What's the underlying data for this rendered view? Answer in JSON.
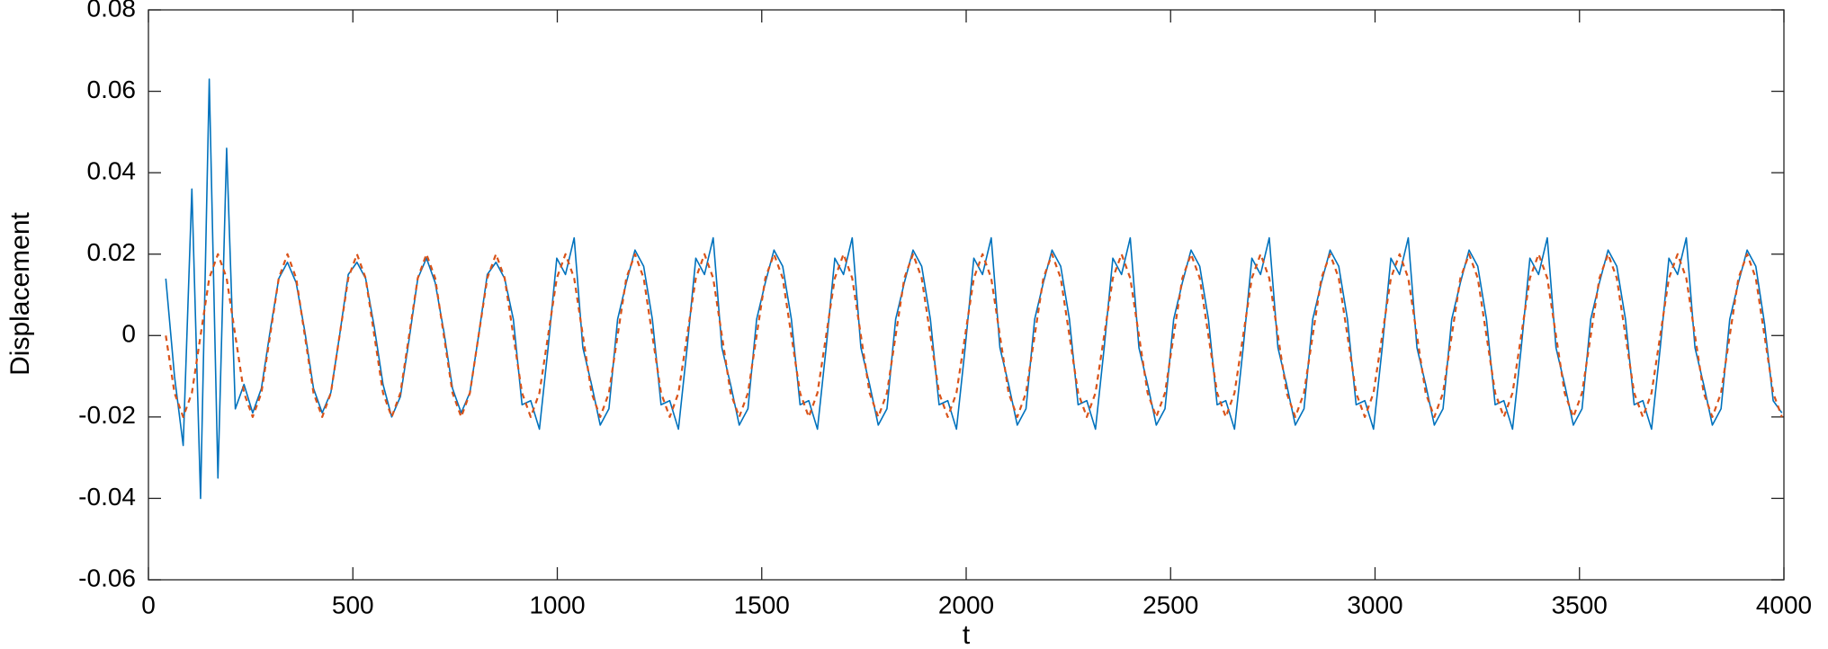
{
  "chart_data": {
    "type": "line",
    "xlabel": "t",
    "ylabel": "Displacement",
    "xlim": [
      0,
      4000
    ],
    "xticks": [
      0,
      500,
      1000,
      1500,
      2000,
      2500,
      3000,
      3500,
      4000
    ],
    "ylim": [
      -0.06,
      0.08
    ],
    "yticks": [
      -0.06,
      -0.04,
      -0.02,
      0,
      0.02,
      0.04,
      0.06,
      0.08
    ],
    "grid": false,
    "x": [
      42.5,
      63.75,
      85,
      106.25,
      127.5,
      148.75,
      170,
      191.25,
      212.5,
      233.75,
      255,
      276.25,
      297.5,
      318.75,
      340,
      361.25,
      382.5,
      403.75,
      425,
      446.25,
      467.5,
      488.75,
      510,
      531.25,
      552.5,
      573.75,
      595,
      616.25,
      637.5,
      658.75,
      680,
      701.25,
      722.5,
      743.75,
      765,
      786.25,
      807.5,
      828.75,
      850,
      871.25,
      892.5,
      913.75,
      935,
      956.25,
      977.5,
      998.75,
      1020,
      1041.25,
      1062.5,
      1083.75,
      1105,
      1126.25,
      1147.5,
      1168.75,
      1190,
      1211.25,
      1232.5,
      1253.75,
      1275,
      1296.25,
      1317.5,
      1338.75,
      1360,
      1381.25,
      1402.5,
      1423.75,
      1445,
      1466.25,
      1487.5,
      1508.75,
      1530,
      1551.25,
      1572.5,
      1593.75,
      1615,
      1636.25,
      1657.5,
      1678.75,
      1700,
      1721.25,
      1742.5,
      1763.75,
      1785,
      1806.25,
      1827.5,
      1848.75,
      1870,
      1891.25,
      1912.5,
      1933.75,
      1955,
      1976.25,
      1997.5,
      2018.75,
      2040,
      2061.25,
      2082.5,
      2103.75,
      2125,
      2146.25,
      2167.5,
      2188.75,
      2210,
      2231.25,
      2252.5,
      2273.75,
      2295,
      2316.25,
      2337.5,
      2358.75,
      2380,
      2401.25,
      2422.5,
      2443.75,
      2465,
      2486.25,
      2507.5,
      2528.75,
      2550,
      2571.25,
      2592.5,
      2613.75,
      2635,
      2656.25,
      2677.5,
      2698.75,
      2720,
      2741.25,
      2762.5,
      2783.75,
      2805,
      2826.25,
      2847.5,
      2868.75,
      2890,
      2911.25,
      2932.5,
      2953.75,
      2975,
      2996.25,
      3017.5,
      3038.75,
      3060,
      3081.25,
      3102.5,
      3123.75,
      3145,
      3166.25,
      3187.5,
      3208.75,
      3230,
      3251.25,
      3272.5,
      3293.75,
      3315,
      3336.25,
      3357.5,
      3378.75,
      3400,
      3421.25,
      3442.5,
      3463.75,
      3485,
      3506.25,
      3527.5,
      3548.75,
      3570,
      3591.25,
      3612.5,
      3633.75,
      3655,
      3676.25,
      3697.5,
      3718.75,
      3740,
      3761.25,
      3782.5,
      3803.75,
      3825,
      3846.25,
      3867.5,
      3888.75,
      3910,
      3931.25,
      3952.5,
      3973.75,
      3995
    ],
    "series": [
      {
        "color": "#0072BD",
        "dash": false,
        "values": [
          0.014,
          -0.01,
          -0.027,
          0.036,
          -0.04,
          0.063,
          -0.035,
          0.046,
          -0.018,
          -0.012,
          -0.019,
          -0.013,
          0.001,
          0.014,
          0.018,
          0.013,
          0.001,
          -0.013,
          -0.019,
          -0.014,
          0,
          0.015,
          0.018,
          0.014,
          0.002,
          -0.012,
          -0.02,
          -0.015,
          -0.001,
          0.014,
          0.019,
          0.013,
          0.001,
          -0.013,
          -0.019,
          -0.014,
          0,
          0.015,
          0.018,
          0.014,
          0.004,
          -0.017,
          -0.016,
          -0.023,
          -0.003,
          0.019,
          0.015,
          0.024,
          -0.003,
          -0.012,
          -0.022,
          -0.018,
          0.004,
          0.013,
          0.021,
          0.017,
          0.004,
          -0.017,
          -0.016,
          -0.023,
          -0.003,
          0.019,
          0.015,
          0.024,
          -0.003,
          -0.012,
          -0.022,
          -0.018,
          0.004,
          0.013,
          0.021,
          0.017,
          0.004,
          -0.017,
          -0.016,
          -0.023,
          -0.003,
          0.019,
          0.015,
          0.024,
          -0.003,
          -0.012,
          -0.022,
          -0.018,
          0.004,
          0.013,
          0.021,
          0.017,
          0.004,
          -0.017,
          -0.016,
          -0.023,
          -0.003,
          0.019,
          0.015,
          0.024,
          -0.003,
          -0.012,
          -0.022,
          -0.018,
          0.004,
          0.013,
          0.021,
          0.017,
          0.004,
          -0.017,
          -0.016,
          -0.023,
          -0.003,
          0.019,
          0.015,
          0.024,
          -0.003,
          -0.012,
          -0.022,
          -0.018,
          0.004,
          0.013,
          0.021,
          0.017,
          0.004,
          -0.017,
          -0.016,
          -0.023,
          -0.003,
          0.019,
          0.015,
          0.024,
          -0.003,
          -0.012,
          -0.022,
          -0.018,
          0.004,
          0.013,
          0.021,
          0.017,
          0.004,
          -0.017,
          -0.016,
          -0.023,
          -0.003,
          0.019,
          0.015,
          0.024,
          -0.003,
          -0.012,
          -0.022,
          -0.018,
          0.004,
          0.013,
          0.021,
          0.017,
          0.004,
          -0.017,
          -0.016,
          -0.023,
          -0.003,
          0.019,
          0.015,
          0.024,
          -0.003,
          -0.012,
          -0.022,
          -0.018,
          0.004,
          0.013,
          0.021,
          0.017,
          0.004,
          -0.017,
          -0.016,
          -0.023,
          -0.003,
          0.019,
          0.015,
          0.024,
          -0.003,
          -0.012,
          -0.022,
          -0.018,
          0.004,
          0.013,
          0.021,
          0.017,
          0.003,
          -0.016,
          -0.019
        ]
      },
      {
        "color": "#D95319",
        "dash": true,
        "values": [
          0,
          -0.0141,
          -0.02,
          -0.0141,
          0,
          0.0141,
          0.02,
          0.0141,
          0,
          -0.0141,
          -0.02,
          -0.0141,
          0,
          0.0141,
          0.02,
          0.0141,
          0,
          -0.0141,
          -0.02,
          -0.0141,
          0,
          0.0141,
          0.02,
          0.0141,
          0,
          -0.0141,
          -0.02,
          -0.0141,
          0,
          0.0141,
          0.02,
          0.0141,
          0,
          -0.0141,
          -0.02,
          -0.0141,
          0,
          0.0141,
          0.02,
          0.0141,
          0,
          -0.0141,
          -0.02,
          -0.0141,
          0,
          0.0141,
          0.02,
          0.0141,
          0,
          -0.0141,
          -0.02,
          -0.0141,
          0,
          0.0141,
          0.02,
          0.0141,
          0,
          -0.0141,
          -0.02,
          -0.0141,
          0,
          0.0141,
          0.02,
          0.0141,
          0,
          -0.0141,
          -0.02,
          -0.0141,
          0,
          0.0141,
          0.02,
          0.0141,
          0,
          -0.0141,
          -0.02,
          -0.0141,
          0,
          0.0141,
          0.02,
          0.0141,
          0,
          -0.0141,
          -0.02,
          -0.0141,
          0,
          0.0141,
          0.02,
          0.0141,
          0,
          -0.0141,
          -0.02,
          -0.0141,
          0,
          0.0141,
          0.02,
          0.0141,
          0,
          -0.0141,
          -0.02,
          -0.0141,
          0,
          0.0141,
          0.02,
          0.0141,
          0,
          -0.0141,
          -0.02,
          -0.0141,
          0,
          0.0141,
          0.02,
          0.0141,
          0,
          -0.0141,
          -0.02,
          -0.0141,
          0,
          0.0141,
          0.02,
          0.0141,
          0,
          -0.0141,
          -0.02,
          -0.0141,
          0,
          0.0141,
          0.02,
          0.0141,
          0,
          -0.0141,
          -0.02,
          -0.0141,
          0,
          0.0141,
          0.02,
          0.0141,
          0,
          -0.0141,
          -0.02,
          -0.0141,
          0,
          0.0141,
          0.02,
          0.0141,
          0,
          -0.0141,
          -0.02,
          -0.0141,
          0,
          0.0141,
          0.02,
          0.0141,
          0,
          -0.0141,
          -0.02,
          -0.0141,
          0,
          0.0141,
          0.02,
          0.0141,
          0,
          -0.0141,
          -0.02,
          -0.0141,
          0,
          0.0141,
          0.02,
          0.0141,
          0,
          -0.0141,
          -0.02,
          -0.0141,
          0,
          0.0141,
          0.02,
          0.0141,
          0,
          -0.0141,
          -0.02,
          -0.0141,
          0,
          0.0141,
          0.02,
          0.0141,
          0,
          -0.0141,
          -0.02
        ]
      }
    ]
  }
}
